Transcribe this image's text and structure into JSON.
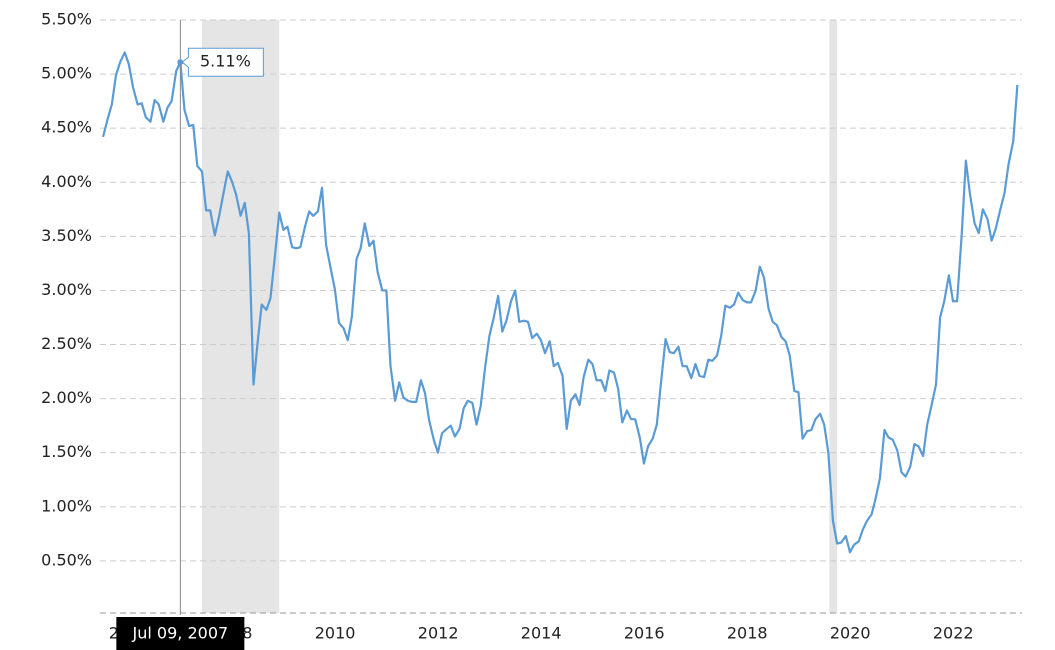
{
  "chart_data": {
    "type": "line",
    "x": [
      2006,
      2006.08,
      2006.17,
      2006.25,
      2006.33,
      2006.42,
      2006.5,
      2006.58,
      2006.67,
      2006.75,
      2006.83,
      2006.92,
      2007,
      2007.08,
      2007.17,
      2007.25,
      2007.33,
      2007.42,
      2007.5,
      2007.58,
      2007.67,
      2007.75,
      2007.83,
      2007.92,
      2008,
      2008.08,
      2008.17,
      2008.25,
      2008.33,
      2008.42,
      2008.5,
      2008.58,
      2008.67,
      2008.75,
      2008.83,
      2008.92,
      2009,
      2009.08,
      2009.17,
      2009.25,
      2009.33,
      2009.42,
      2009.5,
      2009.58,
      2009.67,
      2009.75,
      2009.83,
      2009.92,
      2010,
      2010.08,
      2010.17,
      2010.25,
      2010.33,
      2010.42,
      2010.5,
      2010.58,
      2010.67,
      2010.75,
      2010.83,
      2010.92,
      2011,
      2011.08,
      2011.17,
      2011.25,
      2011.33,
      2011.42,
      2011.5,
      2011.58,
      2011.67,
      2011.75,
      2011.83,
      2011.92,
      2012,
      2012.08,
      2012.17,
      2012.25,
      2012.33,
      2012.42,
      2012.5,
      2012.58,
      2012.67,
      2012.75,
      2012.83,
      2012.92,
      2013,
      2013.08,
      2013.17,
      2013.25,
      2013.33,
      2013.42,
      2013.5,
      2013.58,
      2013.67,
      2013.75,
      2013.83,
      2013.92,
      2014,
      2014.08,
      2014.17,
      2014.25,
      2014.33,
      2014.42,
      2014.5,
      2014.58,
      2014.67,
      2014.75,
      2014.83,
      2014.92,
      2015,
      2015.08,
      2015.17,
      2015.25,
      2015.33,
      2015.42,
      2015.5,
      2015.58,
      2015.67,
      2015.75,
      2015.83,
      2015.92,
      2016,
      2016.08,
      2016.17,
      2016.25,
      2016.33,
      2016.42,
      2016.5,
      2016.58,
      2016.67,
      2016.75,
      2016.83,
      2016.92,
      2017,
      2017.08,
      2017.17,
      2017.25,
      2017.33,
      2017.42,
      2017.5,
      2017.58,
      2017.67,
      2017.75,
      2017.83,
      2017.92,
      2018,
      2018.08,
      2018.17,
      2018.25,
      2018.33,
      2018.42,
      2018.5,
      2018.58,
      2018.67,
      2018.75,
      2018.83,
      2018.92,
      2019,
      2019.08,
      2019.17,
      2019.25,
      2019.33,
      2019.42,
      2019.5,
      2019.58,
      2019.67,
      2019.75,
      2019.83,
      2019.92,
      2020,
      2020.08,
      2020.17,
      2020.25,
      2020.33,
      2020.42,
      2020.5,
      2020.58,
      2020.67,
      2020.75,
      2020.83,
      2020.92,
      2021,
      2021.08,
      2021.17,
      2021.25,
      2021.33,
      2021.42,
      2021.5,
      2021.58,
      2021.67,
      2021.75,
      2021.83,
      2021.92,
      2022,
      2022.08,
      2022.17,
      2022.25,
      2022.33,
      2022.42,
      2022.5,
      2022.58,
      2022.67,
      2022.75,
      2022.83,
      2022.92,
      2023,
      2023.08,
      2023.17,
      2023.25,
      2023.33,
      2023.42,
      2023.5,
      2023.58,
      2023.67,
      2023.75
    ],
    "values": [
      4.42,
      4.57,
      4.72,
      4.99,
      5.11,
      5.2,
      5.09,
      4.88,
      4.72,
      4.73,
      4.6,
      4.56,
      4.76,
      4.72,
      4.56,
      4.69,
      4.75,
      5.03,
      5.11,
      4.67,
      4.52,
      4.53,
      4.15,
      4.1,
      3.74,
      3.74,
      3.51,
      3.68,
      3.88,
      4.1,
      4.01,
      3.89,
      3.69,
      3.81,
      3.53,
      2.13,
      2.52,
      2.87,
      2.82,
      2.93,
      3.29,
      3.72,
      3.56,
      3.59,
      3.4,
      3.39,
      3.4,
      3.59,
      3.73,
      3.69,
      3.73,
      3.95,
      3.42,
      3.2,
      3.01,
      2.7,
      2.65,
      2.54,
      2.76,
      3.29,
      3.39,
      3.62,
      3.41,
      3.46,
      3.17,
      3,
      3,
      2.3,
      1.98,
      2.15,
      2.01,
      1.98,
      1.97,
      1.97,
      2.17,
      2.05,
      1.8,
      1.62,
      1.5,
      1.68,
      1.72,
      1.75,
      1.65,
      1.72,
      1.91,
      1.98,
      1.96,
      1.76,
      1.93,
      2.3,
      2.58,
      2.74,
      2.95,
      2.62,
      2.72,
      2.9,
      3,
      2.71,
      2.72,
      2.71,
      2.56,
      2.6,
      2.54,
      2.42,
      2.53,
      2.3,
      2.33,
      2.21,
      1.72,
      1.98,
      2.04,
      1.94,
      2.2,
      2.36,
      2.32,
      2.17,
      2.17,
      2.07,
      2.26,
      2.24,
      2.09,
      1.78,
      1.89,
      1.81,
      1.81,
      1.64,
      1.4,
      1.56,
      1.63,
      1.76,
      2.14,
      2.55,
      2.43,
      2.42,
      2.48,
      2.3,
      2.3,
      2.19,
      2.32,
      2.21,
      2.2,
      2.36,
      2.35,
      2.4,
      2.58,
      2.86,
      2.84,
      2.87,
      2.98,
      2.91,
      2.89,
      2.89,
      3,
      3.22,
      3.12,
      2.83,
      2.71,
      2.68,
      2.57,
      2.53,
      2.4,
      2.07,
      2.06,
      1.63,
      1.7,
      1.71,
      1.81,
      1.86,
      1.76,
      1.5,
      0.87,
      0.66,
      0.67,
      0.73,
      0.58,
      0.65,
      0.68,
      0.79,
      0.87,
      0.93,
      1.08,
      1.26,
      1.71,
      1.64,
      1.62,
      1.52,
      1.32,
      1.28,
      1.37,
      1.58,
      1.56,
      1.47,
      1.76,
      1.93,
      2.13,
      2.75,
      2.9,
      3.14,
      2.9,
      2.9,
      3.52,
      4.2,
      3.89,
      3.62,
      3.53,
      3.75,
      3.66,
      3.46,
      3.57,
      3.75,
      3.9,
      4.17,
      4.38,
      4.9
    ],
    "color": "#5b9bd5",
    "xlim": [
      2005.94,
      2023.84
    ],
    "xticks": [
      2006,
      2008,
      2010,
      2012,
      2014,
      2016,
      2018,
      2020,
      2022
    ],
    "ylim": [
      0,
      5.5
    ],
    "yticks": [
      {
        "value": 0.5,
        "label": "0.50%"
      },
      {
        "value": 1,
        "label": "1.00%"
      },
      {
        "value": 1.5,
        "label": "1.50%"
      },
      {
        "value": 2,
        "label": "2.00%"
      },
      {
        "value": 2.5,
        "label": "2.50%"
      },
      {
        "value": 3,
        "label": "3.00%"
      },
      {
        "value": 3.5,
        "label": "3.50%"
      },
      {
        "value": 4,
        "label": "4.00%"
      },
      {
        "value": 4.5,
        "label": "4.50%"
      },
      {
        "value": 5,
        "label": "5.00%"
      },
      {
        "value": 5.5,
        "label": "5.50%"
      }
    ],
    "grid": true,
    "recessions": [
      [
        2007.92,
        2009.42
      ],
      [
        2020.1,
        2020.25
      ]
    ],
    "tooltip": {
      "x": 2007.5,
      "value": 5.11,
      "label": "5.11%",
      "date": "Jul 09, 2007"
    }
  }
}
